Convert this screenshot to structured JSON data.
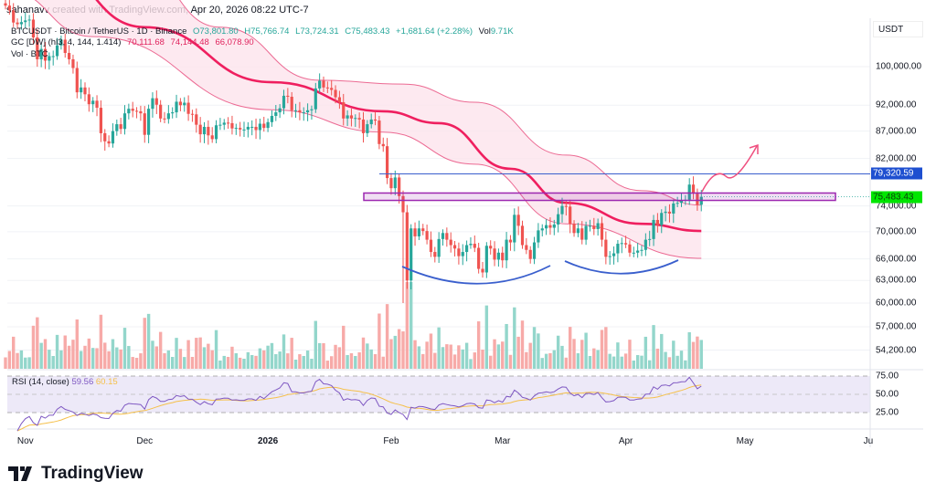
{
  "caption": "sahanavv created with TradingView.com, Apr 20, 2026 08:22 UTC-7",
  "legend": {
    "symbol": "BTCUSDT · Bitcoin / TetherUS · 1D · Binance",
    "open": "O73,801.80",
    "high": "H75,766.74",
    "low": "L73,724.31",
    "close": "C75,483.43",
    "change": "+1,681.64 (+2.28%)",
    "vol_label": "Vol",
    "vol_value": "9.71K",
    "gc_label": "GC [DW] (hl3, 4, 144, 1.414)",
    "gc_values": [
      "70,111.68",
      "74,144.48",
      "66,078.90"
    ],
    "vol_indicator": "Vol · BTC"
  },
  "colors": {
    "up": "#26a69a",
    "down": "#ef5350",
    "band": "#e91e63",
    "drawing": "#3a5fcd",
    "rect": "#9c27b0",
    "rsi": "#7e57c2",
    "rsi_ma": "#f5c04a",
    "last_price": "#00e600",
    "level_tag": "#1e4fd0"
  },
  "price_axis": {
    "currency": "USDT",
    "ticks": [
      "100,000.00",
      "92,000.00",
      "87,000.00",
      "82,000.00",
      "74,000.00",
      "70,000.00",
      "66,000.00",
      "63,000.00",
      "60,000.00",
      "57,000.00",
      "54,200.00"
    ],
    "tick_values": [
      100000,
      92000,
      87000,
      82000,
      74000,
      70000,
      66000,
      63000,
      60000,
      57000,
      54200
    ],
    "level_tag": "79,320.59",
    "level_value": 79320.59,
    "last_tag": "75,483.43",
    "last_value": 75483.43
  },
  "rsi": {
    "label": "RSI (14, close)",
    "value": "59.56",
    "ma_value": "60.15",
    "ticks": [
      "75.00",
      "50.00",
      "25.00"
    ],
    "tick_values": [
      75,
      50,
      25
    ]
  },
  "time_axis": [
    {
      "label": "Nov",
      "date": "2025-11-01"
    },
    {
      "label": "Dec",
      "date": "2025-12-01"
    },
    {
      "label": "2026",
      "date": "2026-01-01",
      "bold": true
    },
    {
      "label": "Feb",
      "date": "2026-02-01"
    },
    {
      "label": "Mar",
      "date": "2026-03-01"
    },
    {
      "label": "Apr",
      "date": "2026-04-01"
    },
    {
      "label": "May",
      "date": "2026-05-01"
    },
    {
      "label": "Ju",
      "date": "2026-06-01"
    }
  ],
  "branding": "TradingView",
  "chart_data": {
    "type": "candlestick",
    "scale": "log",
    "start_date": "2025-10-27",
    "end_date": "2026-04-20",
    "closes": [
      114100,
      112900,
      110000,
      109600,
      110100,
      110500,
      110700,
      106500,
      101600,
      103900,
      101300,
      102300,
      102300,
      104700,
      106000,
      103000,
      101600,
      99700,
      94600,
      95600,
      94200,
      92200,
      92900,
      91500,
      86600,
      85100,
      84700,
      87000,
      88300,
      87400,
      90400,
      91300,
      90900,
      90800,
      90400,
      86300,
      91300,
      93400,
      92100,
      89400,
      89300,
      90400,
      90600,
      92700,
      92000,
      92500,
      90300,
      90200,
      88200,
      86400,
      87800,
      86200,
      85500,
      88100,
      88200,
      88600,
      88500,
      87500,
      87600,
      87300,
      87300,
      87800,
      87800,
      87200,
      88400,
      87600,
      88700,
      89900,
      90600,
      91400,
      93900,
      93700,
      91000,
      91000,
      90600,
      90600,
      91000,
      91200,
      95400,
      97000,
      95600,
      95500,
      95100,
      93600,
      92600,
      89400,
      90000,
      89400,
      89500,
      89200,
      86600,
      88300,
      89200,
      89000,
      84600,
      84200,
      78600,
      76900,
      78700,
      75600,
      73000,
      63000,
      70500,
      69300,
      70500,
      70100,
      68800,
      67000,
      66300,
      68900,
      69800,
      68800,
      68000,
      67500,
      66400,
      67000,
      68000,
      68200,
      67600,
      64600,
      64100,
      67900,
      67500,
      65900,
      66900,
      65800,
      68800,
      68400,
      72600,
      70900,
      68000,
      67300,
      66000,
      68400,
      70200,
      70500,
      71000,
      70600,
      71100,
      72700,
      74000,
      73900,
      71200,
      69800,
      70500,
      68800,
      70900,
      70900,
      70400,
      71300,
      68800,
      66300,
      66400,
      66800,
      68200,
      68300,
      68100,
      66900,
      66900,
      67200,
      67300,
      68800,
      68900,
      71800,
      71000,
      72900,
      73100,
      72800,
      74400,
      74500,
      74900,
      75000,
      77500,
      76000,
      74200,
      75483.43
    ],
    "gc_center": [
      [
        "2025-12-01",
        108900
      ],
      [
        "2026-01-02",
        96700
      ],
      [
        "2026-01-30",
        90800
      ],
      [
        "2026-02-13",
        88500
      ],
      [
        "2026-03-03",
        80200
      ],
      [
        "2026-03-17",
        74500
      ],
      [
        "2026-04-05",
        71200
      ],
      [
        "2026-04-20",
        70111.68
      ]
    ],
    "gc_upper": [
      [
        "2025-12-20",
        108900
      ],
      [
        "2026-01-14",
        97100
      ],
      [
        "2026-02-04",
        96300
      ],
      [
        "2026-02-22",
        92600
      ],
      [
        "2026-03-17",
        82600
      ],
      [
        "2026-04-05",
        76500
      ],
      [
        "2026-04-20",
        74144.48
      ]
    ],
    "gc_lower": [
      [
        "2025-11-18",
        106700
      ],
      [
        "2026-01-02",
        91100
      ],
      [
        "2026-01-30",
        86800
      ],
      [
        "2026-02-22",
        81000
      ],
      [
        "2026-03-17",
        71200
      ],
      [
        "2026-04-20",
        66078.9
      ]
    ],
    "zone": {
      "top": 76100,
      "bottom": 74900
    }
  }
}
